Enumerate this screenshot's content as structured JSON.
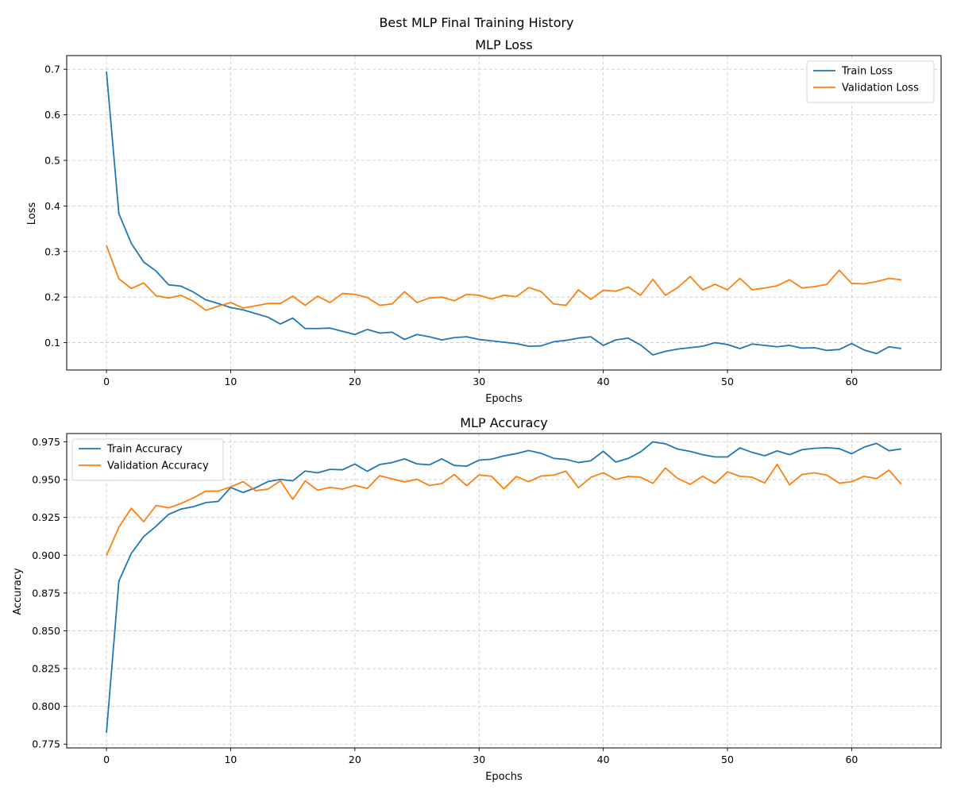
{
  "figure": {
    "suptitle": "Best MLP Final Training History"
  },
  "chart_data": [
    {
      "type": "line",
      "title": "MLP Loss",
      "xlabel": "Epochs",
      "ylabel": "Loss",
      "xlim": [
        -3.2,
        67.2
      ],
      "ylim": [
        0.04,
        0.73
      ],
      "xticks": [
        0,
        10,
        20,
        30,
        40,
        50,
        60
      ],
      "yticks": [
        0.1,
        0.2,
        0.3,
        0.4,
        0.5,
        0.6,
        0.7
      ],
      "ytick_labels": [
        "0.1",
        "0.2",
        "0.3",
        "0.4",
        "0.5",
        "0.6",
        "0.7"
      ],
      "grid": true,
      "legend_position": "top-right",
      "x": [
        0,
        1,
        2,
        3,
        4,
        5,
        6,
        7,
        8,
        9,
        10,
        11,
        12,
        13,
        14,
        15,
        16,
        17,
        18,
        19,
        20,
        21,
        22,
        23,
        24,
        25,
        26,
        27,
        28,
        29,
        30,
        31,
        32,
        33,
        34,
        35,
        36,
        37,
        38,
        39,
        40,
        41,
        42,
        43,
        44,
        45,
        46,
        47,
        48,
        49,
        50,
        51,
        52,
        53,
        54,
        55,
        56,
        57,
        58,
        59,
        60,
        61,
        62,
        63,
        64
      ],
      "series": [
        {
          "name": "Train Loss",
          "color": "#1f77b4",
          "values": [
            0.695,
            0.383,
            0.318,
            0.277,
            0.257,
            0.227,
            0.224,
            0.211,
            0.194,
            0.186,
            0.177,
            0.172,
            0.164,
            0.156,
            0.141,
            0.154,
            0.131,
            0.131,
            0.132,
            0.125,
            0.118,
            0.129,
            0.121,
            0.123,
            0.107,
            0.118,
            0.113,
            0.106,
            0.111,
            0.113,
            0.107,
            0.104,
            0.101,
            0.098,
            0.092,
            0.093,
            0.102,
            0.105,
            0.11,
            0.113,
            0.094,
            0.106,
            0.11,
            0.095,
            0.073,
            0.081,
            0.086,
            0.089,
            0.092,
            0.1,
            0.096,
            0.087,
            0.097,
            0.094,
            0.091,
            0.094,
            0.088,
            0.089,
            0.083,
            0.085,
            0.098,
            0.084,
            0.076,
            0.091,
            0.087
          ]
        },
        {
          "name": "Validation Loss",
          "color": "#ff7f0e",
          "values": [
            0.313,
            0.24,
            0.219,
            0.231,
            0.203,
            0.198,
            0.204,
            0.191,
            0.171,
            0.18,
            0.188,
            0.176,
            0.181,
            0.186,
            0.186,
            0.202,
            0.182,
            0.202,
            0.188,
            0.208,
            0.206,
            0.199,
            0.182,
            0.185,
            0.212,
            0.188,
            0.198,
            0.2,
            0.192,
            0.206,
            0.204,
            0.196,
            0.204,
            0.201,
            0.221,
            0.212,
            0.185,
            0.182,
            0.216,
            0.195,
            0.215,
            0.213,
            0.222,
            0.204,
            0.239,
            0.204,
            0.221,
            0.245,
            0.216,
            0.228,
            0.216,
            0.241,
            0.216,
            0.22,
            0.225,
            0.238,
            0.22,
            0.223,
            0.228,
            0.259,
            0.23,
            0.229,
            0.234,
            0.241,
            0.238
          ]
        }
      ]
    },
    {
      "type": "line",
      "title": "MLP Accuracy",
      "xlabel": "Epochs",
      "ylabel": "Accuracy",
      "xlim": [
        -3.2,
        67.2
      ],
      "ylim": [
        0.7725,
        0.9805
      ],
      "xticks": [
        0,
        10,
        20,
        30,
        40,
        50,
        60
      ],
      "yticks": [
        0.775,
        0.8,
        0.825,
        0.85,
        0.875,
        0.9,
        0.925,
        0.95,
        0.975
      ],
      "ytick_labels": [
        "0.775",
        "0.800",
        "0.825",
        "0.850",
        "0.875",
        "0.900",
        "0.925",
        "0.950",
        "0.975"
      ],
      "grid": true,
      "legend_position": "top-left",
      "x": [
        0,
        1,
        2,
        3,
        4,
        5,
        6,
        7,
        8,
        9,
        10,
        11,
        12,
        13,
        14,
        15,
        16,
        17,
        18,
        19,
        20,
        21,
        22,
        23,
        24,
        25,
        26,
        27,
        28,
        29,
        30,
        31,
        32,
        33,
        34,
        35,
        36,
        37,
        38,
        39,
        40,
        41,
        42,
        43,
        44,
        45,
        46,
        47,
        48,
        49,
        50,
        51,
        52,
        53,
        54,
        55,
        56,
        57,
        58,
        59,
        60,
        61,
        62,
        63,
        64
      ],
      "series": [
        {
          "name": "Train Accuracy",
          "color": "#1f77b4",
          "values": [
            0.7825,
            0.8828,
            0.9012,
            0.9123,
            0.9192,
            0.927,
            0.9305,
            0.9321,
            0.9348,
            0.9356,
            0.9448,
            0.9415,
            0.9446,
            0.9487,
            0.9501,
            0.9492,
            0.9557,
            0.9545,
            0.9568,
            0.9565,
            0.9603,
            0.9555,
            0.96,
            0.9613,
            0.9637,
            0.9604,
            0.9598,
            0.9637,
            0.9594,
            0.9589,
            0.9629,
            0.9635,
            0.9657,
            0.9672,
            0.9693,
            0.9674,
            0.9641,
            0.9634,
            0.9613,
            0.9625,
            0.9688,
            0.9616,
            0.964,
            0.9683,
            0.975,
            0.9737,
            0.9702,
            0.9687,
            0.9665,
            0.965,
            0.965,
            0.971,
            0.968,
            0.9658,
            0.969,
            0.9665,
            0.9698,
            0.9707,
            0.9711,
            0.9705,
            0.9671,
            0.9715,
            0.974,
            0.9691,
            0.9703
          ]
        },
        {
          "name": "Validation Accuracy",
          "color": "#ff7f0e",
          "values": [
            0.8998,
            0.9185,
            0.931,
            0.9222,
            0.9329,
            0.9313,
            0.9342,
            0.938,
            0.9424,
            0.9424,
            0.9452,
            0.9487,
            0.9427,
            0.9437,
            0.9492,
            0.937,
            0.9492,
            0.943,
            0.9449,
            0.9437,
            0.9462,
            0.9442,
            0.9526,
            0.9505,
            0.9485,
            0.9502,
            0.9461,
            0.9474,
            0.9534,
            0.946,
            0.9531,
            0.9522,
            0.9439,
            0.9521,
            0.9486,
            0.9524,
            0.953,
            0.9556,
            0.9446,
            0.9515,
            0.9546,
            0.9501,
            0.9521,
            0.9516,
            0.9476,
            0.9577,
            0.9507,
            0.9469,
            0.9523,
            0.9475,
            0.9552,
            0.9522,
            0.9516,
            0.9478,
            0.9601,
            0.9466,
            0.9534,
            0.9545,
            0.953,
            0.9477,
            0.9486,
            0.9522,
            0.9507,
            0.9563,
            0.9469
          ]
        }
      ]
    }
  ]
}
